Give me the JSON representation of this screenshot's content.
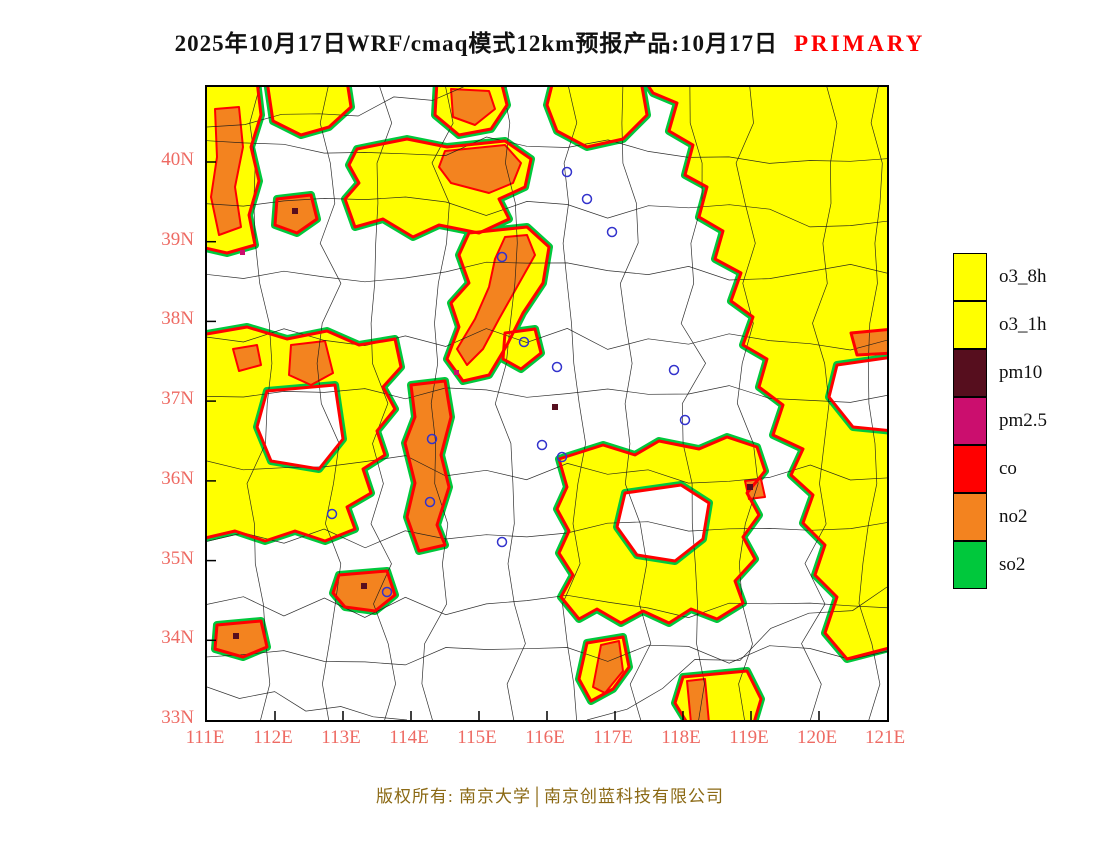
{
  "title": {
    "main": "2025年10月17日WRF/cmaq模式12km预报产品:10月17日",
    "highlight": "PRIMARY"
  },
  "axes": {
    "lat": [
      "40N",
      "39N",
      "38N",
      "37N",
      "36N",
      "35N",
      "34N",
      "33N"
    ],
    "lon": [
      "111E",
      "112E",
      "113E",
      "114E",
      "115E",
      "116E",
      "117E",
      "118E",
      "119E",
      "120E",
      "121E"
    ]
  },
  "legend": {
    "items": [
      {
        "label": "o3_8h",
        "color": "#FFFF00"
      },
      {
        "label": "o3_1h",
        "color": "#FFFF00"
      },
      {
        "label": "pm10",
        "color": "#560E1E"
      },
      {
        "label": "pm2.5",
        "color": "#CB0E6E"
      },
      {
        "label": "co",
        "color": "#FF0000"
      },
      {
        "label": "no2",
        "color": "#F3831F"
      },
      {
        "label": "so2",
        "color": "#00C83C"
      }
    ]
  },
  "footer": {
    "copyright": "版权所有: 南京大学│南京创蓝科技有限公司"
  },
  "colors": {
    "o3": "#FFFF00",
    "pm10": "#560E1E",
    "pm25": "#CB0E6E",
    "co": "#FF0000",
    "no2": "#F3831F",
    "so2": "#00C83C",
    "axis_label": "#EE6A63",
    "title_highlight": "#FF0000",
    "boundary": "#1A1A1A",
    "city_marker": "#3333CC",
    "copyright": "#8B6914"
  }
}
